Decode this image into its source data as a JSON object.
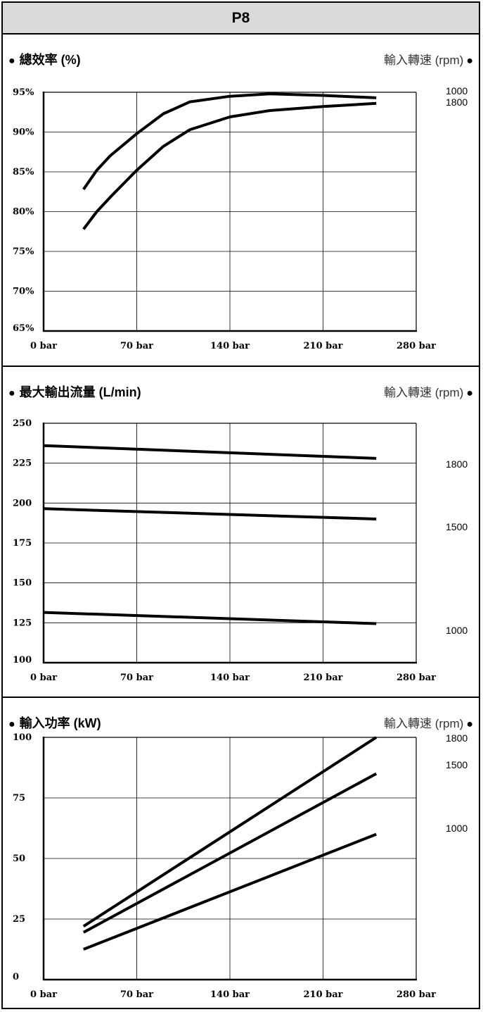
{
  "header": {
    "title": "P8"
  },
  "panels": [
    {
      "title": "總效率 (%)",
      "rpm_title": "輸入轉速 (rpm)"
    },
    {
      "title": "最大輸出流量 (L/min)",
      "rpm_title": "輸入轉速 (rpm)"
    },
    {
      "title": "輸入功率 (kW)",
      "rpm_title": "輸入轉速 (rpm)"
    }
  ],
  "icons": {
    "bullet": "●"
  },
  "chart_data": [
    {
      "type": "line",
      "title": "總效率 (%)",
      "legend_title": "輸入轉速 (rpm)",
      "xlabel": "",
      "ylabel": "",
      "xlim": [
        0,
        280
      ],
      "ylim": [
        65,
        95
      ],
      "x_ticks": [
        "0 bar",
        "70 bar",
        "140 bar",
        "210 bar",
        "280 bar"
      ],
      "y_ticks": [
        "65%",
        "70%",
        "75%",
        "80%",
        "85%",
        "90%",
        "95%"
      ],
      "grid": true,
      "series": [
        {
          "name": "1000",
          "x": [
            30,
            40,
            50,
            70,
            90,
            110,
            140,
            170,
            210,
            250
          ],
          "y": [
            82.8,
            85.2,
            87.0,
            89.8,
            92.3,
            93.8,
            94.5,
            94.8,
            94.6,
            94.3
          ]
        },
        {
          "name": "1800",
          "x": [
            30,
            40,
            50,
            70,
            90,
            110,
            140,
            170,
            210,
            250
          ],
          "y": [
            77.8,
            80.0,
            81.8,
            85.2,
            88.2,
            90.3,
            91.9,
            92.7,
            93.2,
            93.6
          ]
        }
      ],
      "legend_labels": [
        "1000",
        "1800"
      ]
    },
    {
      "type": "line",
      "title": "最大輸出流量 (L/min)",
      "legend_title": "輸入轉速 (rpm)",
      "xlabel": "",
      "ylabel": "",
      "xlim": [
        0,
        280
      ],
      "ylim": [
        100,
        250
      ],
      "x_ticks": [
        "0 bar",
        "70 bar",
        "140 bar",
        "210 bar",
        "280 bar"
      ],
      "y_ticks": [
        "100",
        "125",
        "150",
        "175",
        "200",
        "225",
        "250"
      ],
      "grid": true,
      "series": [
        {
          "name": "1800",
          "x": [
            0,
            250
          ],
          "y": [
            236,
            228
          ]
        },
        {
          "name": "1500",
          "x": [
            0,
            250
          ],
          "y": [
            196.5,
            190
          ]
        },
        {
          "name": "1000",
          "x": [
            0,
            250
          ],
          "y": [
            131.5,
            124.5
          ]
        }
      ],
      "legend_labels": [
        "1800",
        "1500",
        "1000"
      ]
    },
    {
      "type": "line",
      "title": "輸入功率 (kW)",
      "legend_title": "輸入轉速 (rpm)",
      "xlabel": "",
      "ylabel": "",
      "xlim": [
        0,
        280
      ],
      "ylim": [
        0,
        100
      ],
      "x_ticks": [
        "0 bar",
        "70 bar",
        "140 bar",
        "210 bar",
        "280 bar"
      ],
      "y_ticks": [
        "0",
        "25",
        "50",
        "75",
        "100"
      ],
      "grid": true,
      "series": [
        {
          "name": "1800",
          "x": [
            30,
            250
          ],
          "y": [
            22,
            100
          ]
        },
        {
          "name": "1500",
          "x": [
            30,
            250
          ],
          "y": [
            19.5,
            85
          ]
        },
        {
          "name": "1000",
          "x": [
            30,
            250
          ],
          "y": [
            12.5,
            60
          ]
        }
      ],
      "legend_labels": [
        "1800",
        "1500",
        "1000"
      ]
    }
  ]
}
